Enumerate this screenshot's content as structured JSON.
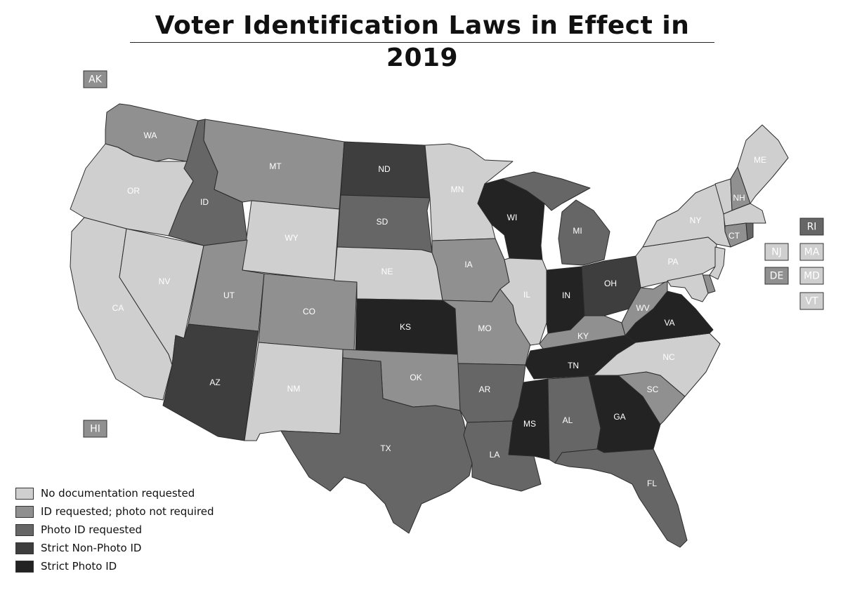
{
  "title": "Voter Identification Laws in Effect in 2019",
  "categories": {
    "none": {
      "label": "No documentation requested",
      "color": "#cfcfcf"
    },
    "id": {
      "label": "ID requested; photo not required",
      "color": "#909090"
    },
    "photo": {
      "label": "Photo ID requested",
      "color": "#666666"
    },
    "strictnp": {
      "label": "Strict Non-Photo ID",
      "color": "#3e3e3e"
    },
    "strictp": {
      "label": "Strict Photo ID",
      "color": "#232323"
    }
  },
  "legend_order": [
    "none",
    "id",
    "photo",
    "strictnp",
    "strictp"
  ],
  "states": {
    "WA": "id",
    "OR": "none",
    "CA": "none",
    "NV": "none",
    "ID": "photo",
    "MT": "id",
    "WY": "none",
    "UT": "id",
    "CO": "id",
    "AZ": "strictnp",
    "NM": "none",
    "ND": "strictnp",
    "SD": "photo",
    "NE": "none",
    "KS": "strictp",
    "OK": "id",
    "TX": "photo",
    "MN": "none",
    "IA": "id",
    "MO": "id",
    "AR": "photo",
    "LA": "photo",
    "WI": "strictp",
    "IL": "none",
    "MI": "photo",
    "IN": "strictp",
    "OH": "strictnp",
    "KY": "id",
    "TN": "strictp",
    "MS": "strictp",
    "AL": "photo",
    "GA": "strictp",
    "FL": "photo",
    "SC": "id",
    "NC": "none",
    "VA": "strictp",
    "WV": "id",
    "PA": "none",
    "NY": "none",
    "ME": "none",
    "NH": "id",
    "CT": "id",
    "AK": "id",
    "HI": "id",
    "RI": "photo",
    "NJ": "none",
    "MA": "none",
    "DE": "id",
    "MD": "none",
    "VT": "none"
  },
  "small_state_boxes": [
    "AK",
    "HI",
    "RI",
    "NJ",
    "MA",
    "DE",
    "MD",
    "VT"
  ]
}
